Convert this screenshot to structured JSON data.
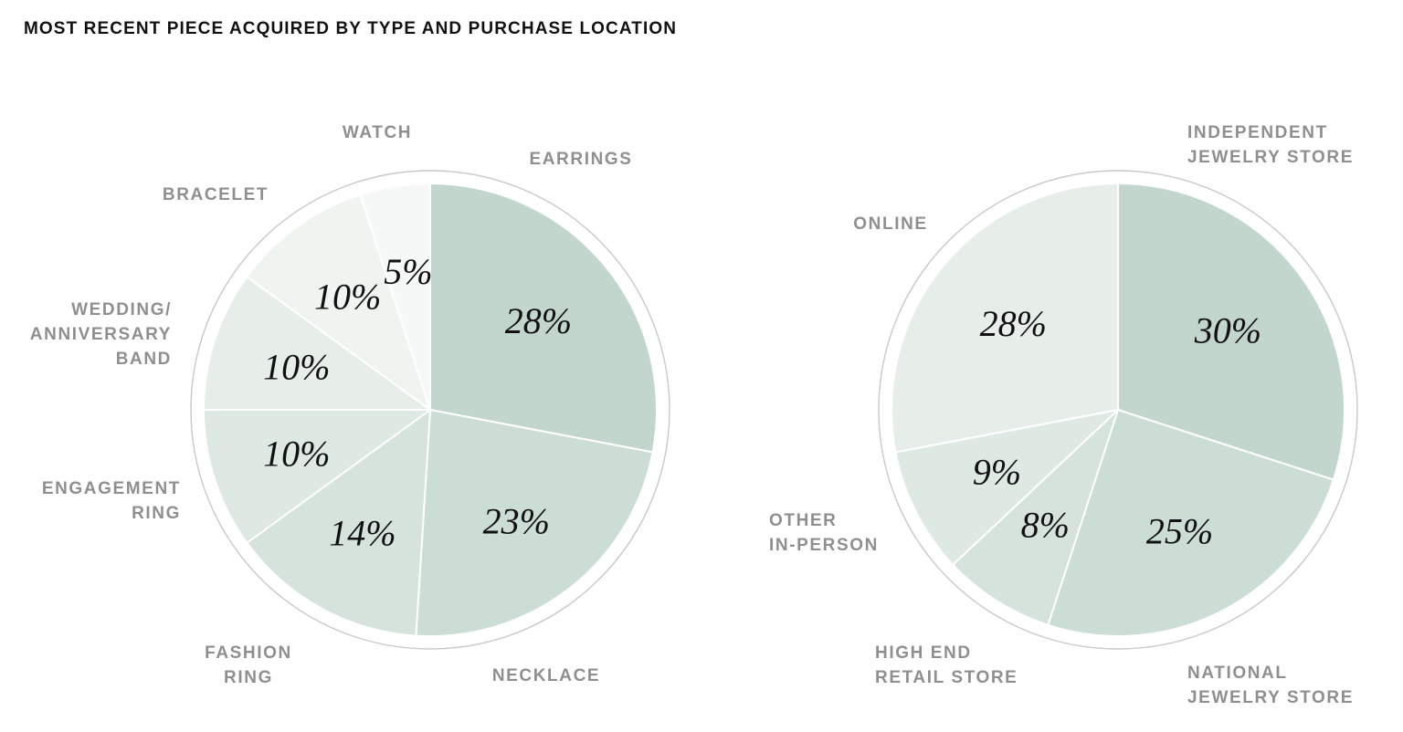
{
  "chart_data": [
    {
      "type": "pie",
      "title": "MOST RECENT PIECE ACQUIRED BY TYPE AND PURCHASE LOCATION",
      "slices": [
        {
          "category": "EARRINGS",
          "label_lines": [
            "EARRINGS"
          ],
          "value": 28,
          "value_label": "28%",
          "color": "#c2d6cd"
        },
        {
          "category": "NECKLACE",
          "label_lines": [
            "NECKLACE"
          ],
          "value": 23,
          "value_label": "23%",
          "color": "#ccddd5"
        },
        {
          "category": "FASHION RING",
          "label_lines": [
            "FASHION",
            "RING"
          ],
          "value": 14,
          "value_label": "14%",
          "color": "#d6e3dc"
        },
        {
          "category": "ENGAGEMENT RING",
          "label_lines": [
            "ENGAGEMENT",
            "RING"
          ],
          "value": 10,
          "value_label": "10%",
          "color": "#dfe9e4"
        },
        {
          "category": "WEDDING/ ANNIVERSARY BAND",
          "label_lines": [
            "WEDDING/",
            "ANNIVERSARY",
            "BAND"
          ],
          "value": 10,
          "value_label": "10%",
          "color": "#e7eeea"
        },
        {
          "category": "BRACELET",
          "label_lines": [
            "BRACELET"
          ],
          "value": 10,
          "value_label": "10%",
          "color": "#eff4f1"
        },
        {
          "category": "WATCH",
          "label_lines": [
            "WATCH"
          ],
          "value": 5,
          "value_label": "5%",
          "color": "#f5f8f6"
        }
      ]
    },
    {
      "type": "pie",
      "title": "",
      "slices": [
        {
          "category": "INDEPENDENT JEWELRY STORE",
          "label_lines": [
            "INDEPENDENT",
            "JEWELRY STORE"
          ],
          "value": 30,
          "value_label": "30%",
          "color": "#c2d6cd"
        },
        {
          "category": "NATIONAL JEWELRY STORE",
          "label_lines": [
            "NATIONAL",
            "JEWELRY STORE"
          ],
          "value": 25,
          "value_label": "25%",
          "color": "#ccddd5"
        },
        {
          "category": "HIGH END RETAIL STORE",
          "label_lines": [
            "HIGH END",
            "RETAIL STORE"
          ],
          "value": 8,
          "value_label": "8%",
          "color": "#d6e3dc"
        },
        {
          "category": "OTHER IN-PERSON",
          "label_lines": [
            "OTHER",
            "IN-PERSON"
          ],
          "value": 9,
          "value_label": "9%",
          "color": "#dfe9e4"
        },
        {
          "category": "ONLINE",
          "label_lines": [
            "ONLINE"
          ],
          "value": 28,
          "value_label": "28%",
          "color": "#e7eeea"
        }
      ]
    }
  ]
}
